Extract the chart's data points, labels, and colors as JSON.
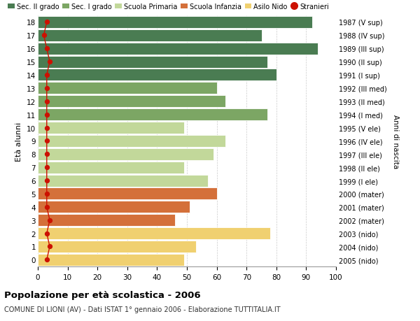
{
  "ages": [
    18,
    17,
    16,
    15,
    14,
    13,
    12,
    11,
    10,
    9,
    8,
    7,
    6,
    5,
    4,
    3,
    2,
    1,
    0
  ],
  "values": [
    92,
    75,
    94,
    77,
    80,
    60,
    63,
    77,
    49,
    63,
    59,
    49,
    57,
    60,
    51,
    46,
    78,
    53,
    49
  ],
  "stranieri_vals": [
    3,
    2,
    3,
    4,
    3,
    3,
    3,
    3,
    3,
    3,
    3,
    3,
    3,
    3,
    3,
    4,
    3,
    4,
    3
  ],
  "right_labels": [
    "1987 (V sup)",
    "1988 (IV sup)",
    "1989 (III sup)",
    "1990 (II sup)",
    "1991 (I sup)",
    "1992 (III med)",
    "1993 (II med)",
    "1994 (I med)",
    "1995 (V ele)",
    "1996 (IV ele)",
    "1997 (III ele)",
    "1998 (II ele)",
    "1999 (I ele)",
    "2000 (mater)",
    "2001 (mater)",
    "2002 (mater)",
    "2003 (nido)",
    "2004 (nido)",
    "2005 (nido)"
  ],
  "bar_colors": [
    "#4a7c52",
    "#4a7c52",
    "#4a7c52",
    "#4a7c52",
    "#4a7c52",
    "#7ca664",
    "#7ca664",
    "#7ca664",
    "#c2d89a",
    "#c2d89a",
    "#c2d89a",
    "#c2d89a",
    "#c2d89a",
    "#d4703a",
    "#d4703a",
    "#d4703a",
    "#f0d070",
    "#f0d070",
    "#f0d070"
  ],
  "legend_labels": [
    "Sec. II grado",
    "Sec. I grado",
    "Scuola Primaria",
    "Scuola Infanzia",
    "Asilo Nido",
    "Stranieri"
  ],
  "legend_colors": [
    "#4a7c52",
    "#7ca664",
    "#c2d89a",
    "#d4703a",
    "#f0d070",
    "#cc1100"
  ],
  "title": "Popolazione per età scolastica - 2006",
  "subtitle": "COMUNE DI LIONI (AV) - Dati ISTAT 1° gennaio 2006 - Elaborazione TUTTITALIA.IT",
  "ylabel_left": "Età alunni",
  "ylabel_right": "Anni di nascita",
  "xlim": [
    0,
    100
  ],
  "stranieri_color": "#cc1100",
  "bg_color": "#ffffff",
  "grid_color": "#cccccc"
}
